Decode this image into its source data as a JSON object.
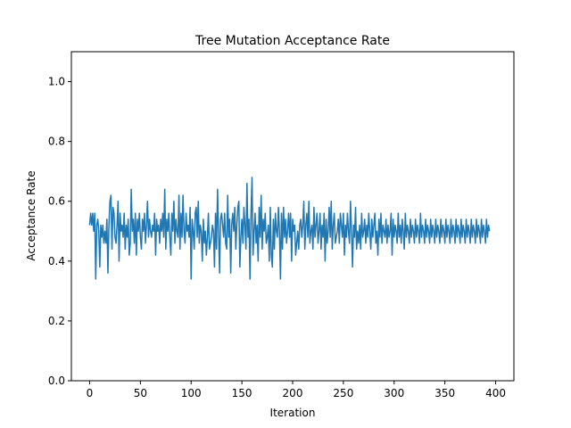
{
  "chart_data": {
    "type": "line",
    "title": "Tree Mutation Acceptance Rate",
    "xlabel": "Iteration",
    "ylabel": "Acceptance Rate",
    "xlim": [
      -18,
      418
    ],
    "ylim": [
      0.0,
      1.1
    ],
    "x_ticks": [
      0,
      50,
      100,
      150,
      200,
      250,
      300,
      350,
      400
    ],
    "y_ticks": [
      0.0,
      0.2,
      0.4,
      0.6,
      0.8,
      1.0
    ],
    "x_tick_labels": [
      "0",
      "50",
      "100",
      "150",
      "200",
      "250",
      "300",
      "350",
      "400"
    ],
    "y_tick_labels": [
      "0.0",
      "0.2",
      "0.4",
      "0.6",
      "0.8",
      "1.0"
    ],
    "grid": false,
    "legend": "none",
    "series": [
      {
        "color": "#1f77b4",
        "x_start": 0,
        "x_step": 1,
        "values": [
          0.52,
          0.56,
          0.52,
          0.56,
          0.5,
          0.56,
          0.34,
          0.52,
          0.54,
          0.5,
          0.38,
          0.52,
          0.48,
          0.52,
          0.46,
          0.5,
          0.46,
          0.54,
          0.36,
          0.52,
          0.6,
          0.62,
          0.44,
          0.58,
          0.56,
          0.48,
          0.46,
          0.52,
          0.6,
          0.4,
          0.56,
          0.5,
          0.52,
          0.48,
          0.56,
          0.44,
          0.52,
          0.48,
          0.54,
          0.42,
          0.46,
          0.64,
          0.5,
          0.54,
          0.46,
          0.56,
          0.42,
          0.54,
          0.5,
          0.56,
          0.48,
          0.44,
          0.54,
          0.5,
          0.56,
          0.46,
          0.52,
          0.6,
          0.48,
          0.54,
          0.5,
          0.48,
          0.52,
          0.5,
          0.56,
          0.42,
          0.54,
          0.5,
          0.52,
          0.46,
          0.54,
          0.5,
          0.56,
          0.48,
          0.64,
          0.44,
          0.54,
          0.5,
          0.56,
          0.48,
          0.42,
          0.56,
          0.5,
          0.6,
          0.46,
          0.54,
          0.5,
          0.48,
          0.62,
          0.44,
          0.56,
          0.48,
          0.62,
          0.5,
          0.46,
          0.56,
          0.5,
          0.52,
          0.48,
          0.58,
          0.34,
          0.54,
          0.5,
          0.44,
          0.56,
          0.58,
          0.48,
          0.6,
          0.46,
          0.52,
          0.5,
          0.4,
          0.54,
          0.46,
          0.5,
          0.42,
          0.48,
          0.56,
          0.44,
          0.46,
          0.48,
          0.52,
          0.5,
          0.38,
          0.56,
          0.44,
          0.64,
          0.5,
          0.36,
          0.54,
          0.56,
          0.52,
          0.48,
          0.56,
          0.46,
          0.44,
          0.62,
          0.48,
          0.54,
          0.36,
          0.52,
          0.56,
          0.5,
          0.58,
          0.44,
          0.52,
          0.58,
          0.6,
          0.38,
          0.48,
          0.54,
          0.46,
          0.58,
          0.52,
          0.44,
          0.66,
          0.48,
          0.54,
          0.34,
          0.56,
          0.68,
          0.42,
          0.5,
          0.56,
          0.46,
          0.52,
          0.4,
          0.58,
          0.48,
          0.62,
          0.44,
          0.54,
          0.5,
          0.56,
          0.46,
          0.48,
          0.52,
          0.4,
          0.58,
          0.42,
          0.38,
          0.54,
          0.44,
          0.56,
          0.5,
          0.48,
          0.58,
          0.5,
          0.34,
          0.56,
          0.44,
          0.58,
          0.48,
          0.54,
          0.46,
          0.5,
          0.56,
          0.48,
          0.56,
          0.4,
          0.54,
          0.5,
          0.52,
          0.42,
          0.46,
          0.5,
          0.44,
          0.52,
          0.54,
          0.48,
          0.52,
          0.6,
          0.44,
          0.52,
          0.56,
          0.48,
          0.6,
          0.46,
          0.5,
          0.52,
          0.44,
          0.58,
          0.48,
          0.52,
          0.56,
          0.46,
          0.5,
          0.56,
          0.44,
          0.52,
          0.48,
          0.56,
          0.4,
          0.54,
          0.46,
          0.5,
          0.58,
          0.48,
          0.6,
          0.44,
          0.52,
          0.56,
          0.46,
          0.48,
          0.5,
          0.54,
          0.46,
          0.56,
          0.52,
          0.48,
          0.56,
          0.42,
          0.52,
          0.48,
          0.56,
          0.5,
          0.46,
          0.6,
          0.5,
          0.38,
          0.52,
          0.48,
          0.58,
          0.44,
          0.5,
          0.46,
          0.52,
          0.44,
          0.56,
          0.48,
          0.5,
          0.54,
          0.46,
          0.52,
          0.48,
          0.56,
          0.5,
          0.44,
          0.54,
          0.48,
          0.52,
          0.56,
          0.46,
          0.5,
          0.42,
          0.54,
          0.48,
          0.56,
          0.46,
          0.52,
          0.5,
          0.48,
          0.54,
          0.46,
          0.52,
          0.48,
          0.5,
          0.56,
          0.42,
          0.54,
          0.48,
          0.52,
          0.5,
          0.46,
          0.56,
          0.48,
          0.52,
          0.46,
          0.54,
          0.5,
          0.44,
          0.56,
          0.48,
          0.52,
          0.5,
          0.46,
          0.54,
          0.48,
          0.52,
          0.5,
          0.46,
          0.54,
          0.48,
          0.52,
          0.5,
          0.46,
          0.56,
          0.48,
          0.52,
          0.5,
          0.46,
          0.54,
          0.48,
          0.52,
          0.5,
          0.46,
          0.54,
          0.48,
          0.52,
          0.5,
          0.46,
          0.54,
          0.48,
          0.52,
          0.5,
          0.46,
          0.54,
          0.48,
          0.52,
          0.5,
          0.46,
          0.54,
          0.48,
          0.52,
          0.5,
          0.46,
          0.54,
          0.48,
          0.52,
          0.5,
          0.46,
          0.54,
          0.48,
          0.52,
          0.5,
          0.46,
          0.54,
          0.48,
          0.52,
          0.5,
          0.46,
          0.54,
          0.48,
          0.52,
          0.5,
          0.46,
          0.54,
          0.48,
          0.52,
          0.5,
          0.46,
          0.54,
          0.48,
          0.52,
          0.5,
          0.46,
          0.54,
          0.48,
          0.52,
          0.5,
          0.46,
          0.54,
          0.48,
          0.52,
          0.5
        ]
      }
    ]
  }
}
